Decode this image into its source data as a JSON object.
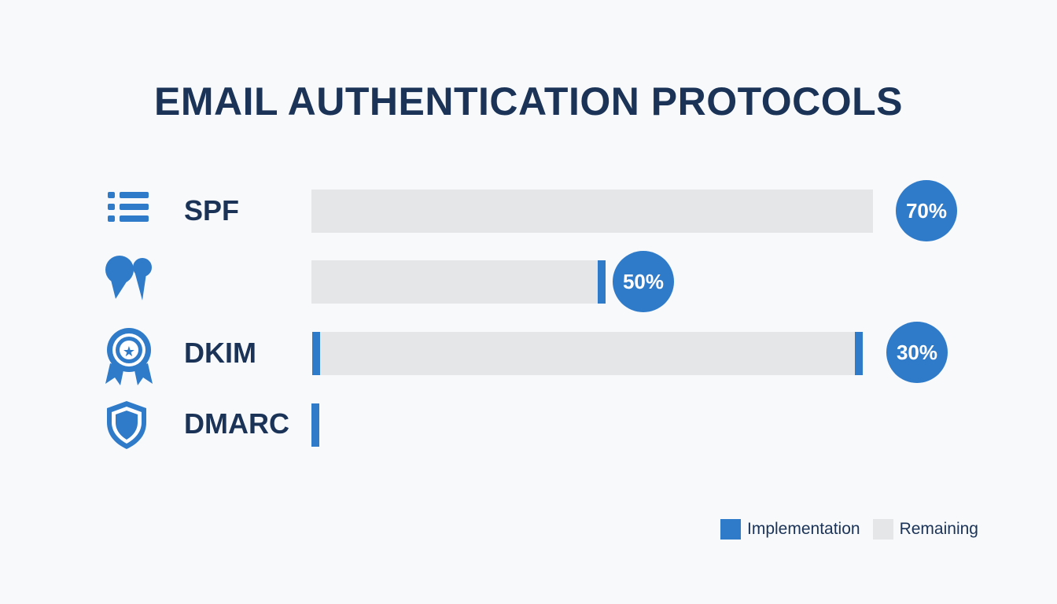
{
  "colors": {
    "accent": "#2f7bc9",
    "track": "#e5e6e8",
    "title": "#1a3357",
    "label": "#1a3357",
    "background": "#f7f9fb",
    "badge_text": "#ffffff"
  },
  "chart_data": {
    "type": "bar",
    "title": "EMAIL AUTHENTICATION PROTOCOLS",
    "xlabel": "",
    "ylabel": "",
    "grid": false,
    "legend_position": "bottom-right",
    "categories": [
      "SPF",
      "",
      "DKIM",
      "DMARC"
    ],
    "row_icons": [
      "list-icon",
      "speech-bubbles-icon",
      "award-badge-icon",
      "shield-icon"
    ],
    "series": [
      {
        "name": "Implementation",
        "values": [
          null,
          null,
          null,
          null
        ],
        "value_labels": [
          "70%",
          "50%",
          "30%",
          ""
        ]
      },
      {
        "name": "Remaining",
        "values": [
          null,
          null,
          null,
          null
        ]
      }
    ],
    "legend": [
      {
        "label": "Implementation",
        "color": "#2f7bc9"
      },
      {
        "label": "Remaining",
        "color": "#e5e6e8"
      }
    ]
  }
}
